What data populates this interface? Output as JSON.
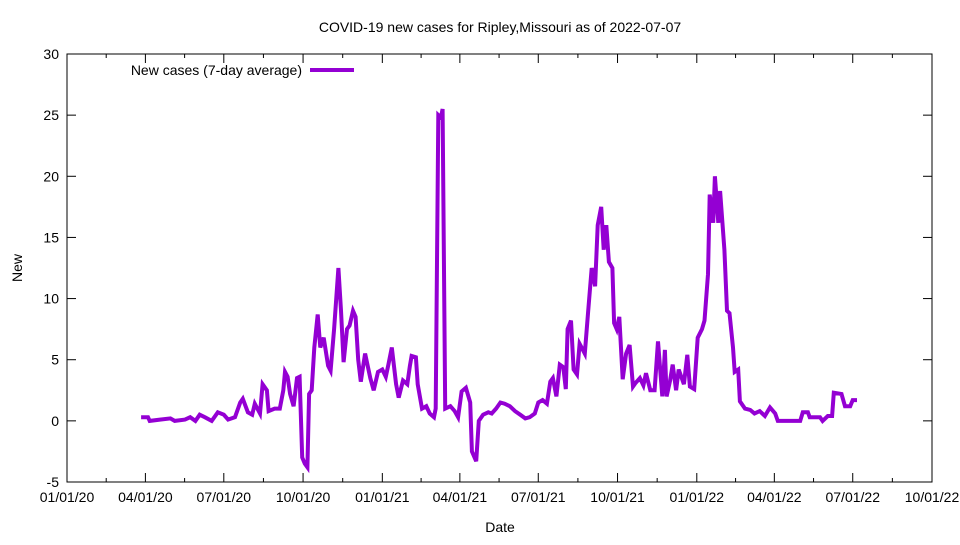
{
  "chart_data": {
    "type": "line",
    "title": "COVID-19 new cases for Ripley,Missouri as of 2022-07-07",
    "xlabel": "Date",
    "ylabel": "New",
    "ylim": [
      -5,
      30
    ],
    "yticks": [
      -5,
      0,
      5,
      10,
      15,
      20,
      25,
      30
    ],
    "xlim_days": [
      0,
      1004
    ],
    "xticks": [
      {
        "day": 0,
        "label": "01/01/20"
      },
      {
        "day": 91,
        "label": "04/01/20"
      },
      {
        "day": 182,
        "label": "07/01/20"
      },
      {
        "day": 274,
        "label": "10/01/20"
      },
      {
        "day": 366,
        "label": "01/01/21"
      },
      {
        "day": 456,
        "label": "04/01/21"
      },
      {
        "day": 547,
        "label": "07/01/21"
      },
      {
        "day": 639,
        "label": "10/01/21"
      },
      {
        "day": 731,
        "label": "01/01/22"
      },
      {
        "day": 821,
        "label": "04/01/22"
      },
      {
        "day": 912,
        "label": "07/01/22"
      },
      {
        "day": 1004,
        "label": "10/01/22"
      }
    ],
    "legend": {
      "position": "top-left"
    },
    "grid": false,
    "series": [
      {
        "name": "New cases (7-day average)",
        "color": "#9400d3",
        "x": [
          86,
          94,
          96,
          108,
          120,
          125,
          137,
          143,
          149,
          154,
          160,
          168,
          175,
          182,
          187,
          195,
          201,
          204,
          210,
          215,
          218,
          224,
          227,
          232,
          234,
          241,
          247,
          251,
          253,
          256,
          259,
          263,
          267,
          270,
          273,
          276,
          279,
          281,
          284,
          287,
          291,
          294,
          298,
          303,
          306,
          310,
          315,
          318,
          321,
          325,
          328,
          332,
          335,
          338,
          341,
          346,
          352,
          356,
          361,
          366,
          370,
          373,
          377,
          382,
          385,
          390,
          395,
          398,
          400,
          405,
          407,
          412,
          417,
          421,
          426,
          428,
          431,
          434,
          436,
          439,
          445,
          450,
          454,
          458,
          463,
          468,
          470,
          475,
          478,
          483,
          489,
          493,
          498,
          503,
          508,
          514,
          520,
          526,
          532,
          537,
          543,
          547,
          552,
          557,
          561,
          564,
          568,
          572,
          576,
          579,
          581,
          585,
          588,
          592,
          595,
          601,
          605,
          609,
          613,
          616,
          620,
          623,
          626,
          629,
          633,
          635,
          638,
          641,
          645,
          649,
          653,
          657,
          660,
          665,
          669,
          672,
          677,
          682,
          686,
          691,
          694,
          696,
          700,
          703,
          707,
          710,
          716,
          720,
          723,
          728,
          732,
          737,
          740,
          744,
          746,
          750,
          752,
          756,
          758,
          763,
          766,
          769,
          773,
          775,
          779,
          781,
          787,
          793,
          798,
          804,
          810,
          816,
          822,
          825,
          851,
          854,
          860,
          862,
          874,
          877,
          883,
          888,
          890,
          899,
          903,
          909,
          912,
          917
        ],
        "y": [
          0.3,
          0.3,
          0,
          0.1,
          0.2,
          0,
          0.1,
          0.3,
          0,
          0.5,
          0.3,
          0,
          0.7,
          0.5,
          0.1,
          0.3,
          1.5,
          1.8,
          0.7,
          0.5,
          1.4,
          0.6,
          3.0,
          2.5,
          0.8,
          1.0,
          1.0,
          2.5,
          4.0,
          3.6,
          2.2,
          1.2,
          3.5,
          3.6,
          -3,
          -3.5,
          -3.8,
          2.2,
          2.5,
          6,
          8.7,
          6,
          6.8,
          4.5,
          4.1,
          7.5,
          12.5,
          9,
          4.8,
          7.5,
          7.8,
          9,
          8.5,
          5,
          3.2,
          5.5,
          3.5,
          2.5,
          4,
          4.2,
          3.6,
          4.6,
          6,
          3,
          1.9,
          3.3,
          3,
          4.5,
          5.3,
          5.2,
          3,
          1.0,
          1.2,
          0.6,
          0.3,
          1,
          25,
          24.8,
          25.5,
          1.0,
          1.2,
          0.8,
          0.3,
          2.4,
          2.7,
          1.5,
          -2.5,
          -3.3,
          0,
          0.5,
          0.7,
          0.6,
          1.0,
          1.5,
          1.4,
          1.2,
          0.8,
          0.5,
          0.2,
          0.3,
          0.6,
          1.5,
          1.7,
          1.4,
          3.2,
          3.5,
          2.0,
          4.6,
          4.4,
          2.6,
          7.5,
          8.2,
          4.2,
          3.8,
          6.3,
          5.5,
          9,
          12.5,
          11,
          16,
          17.5,
          14,
          16,
          13,
          12.5,
          8,
          7.5,
          8.5,
          3.4,
          5.5,
          6.2,
          2.8,
          3.1,
          3.5,
          2.9,
          3.9,
          2.5,
          2.5,
          6.5,
          2.0,
          5.8,
          2.0,
          3.3,
          4.6,
          2.5,
          4.2,
          3,
          5.4,
          2.8,
          2.6,
          6.8,
          7.5,
          8.2,
          12,
          18.5,
          16.2,
          20,
          16.2,
          18.8,
          14,
          9,
          8.8,
          6,
          4,
          4.2,
          1.6,
          1.0,
          0.9,
          0.6,
          0.8,
          0.4,
          1.1,
          0.6,
          0,
          0,
          0.7,
          0.7,
          0.3,
          0.3,
          0,
          0.4,
          0.4,
          2.3,
          2.2,
          1.2,
          1.2,
          1.7,
          1.7
        ]
      }
    ]
  }
}
